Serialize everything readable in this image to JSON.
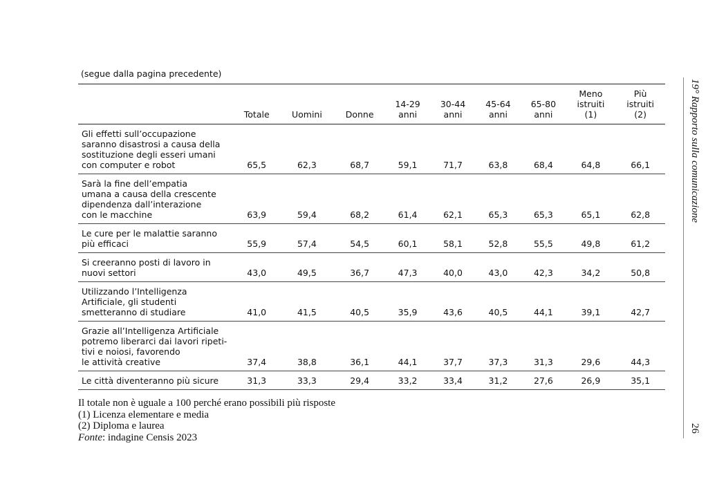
{
  "caption": "(segue dalla pagina precedente)",
  "header": [
    "Totale",
    "Uomini",
    "Donne",
    "14-29\nanni",
    "30-44\nanni",
    "45-64\nanni",
    "65-80\nanni",
    "Meno\nistruiti\n(1)",
    "Più\nistruiti\n(2)"
  ],
  "rows": [
    {
      "label": "Gli effetti sull’occupazione\nsaranno disastrosi a causa della\nsostituzione degli esseri umani\ncon computer e robot",
      "values": [
        "65,5",
        "62,3",
        "68,7",
        "59,1",
        "71,7",
        "63,8",
        "68,4",
        "64,8",
        "66,1"
      ]
    },
    {
      "label": "Sarà la fine dell’empatia\numana a causa della crescente\ndipendenza dall’interazione\ncon le macchine",
      "values": [
        "63,9",
        "59,4",
        "68,2",
        "61,4",
        "62,1",
        "65,3",
        "65,3",
        "65,1",
        "62,8"
      ]
    },
    {
      "label": "Le cure per le malattie saranno\npiù efficaci",
      "values": [
        "55,9",
        "57,4",
        "54,5",
        "60,1",
        "58,1",
        "52,8",
        "55,5",
        "49,8",
        "61,2"
      ]
    },
    {
      "label": "Si creeranno posti di lavoro in\nnuovi settori",
      "values": [
        "43,0",
        "49,5",
        "36,7",
        "47,3",
        "40,0",
        "43,0",
        "42,3",
        "34,2",
        "50,8"
      ]
    },
    {
      "label": "Utilizzando l’Intelligenza\nArtificiale, gli studenti\nsmetteranno di studiare",
      "values": [
        "41,0",
        "41,5",
        "40,5",
        "35,9",
        "43,6",
        "40,5",
        "44,1",
        "39,1",
        "42,7"
      ]
    },
    {
      "label": "Grazie all’Intelligenza Artificiale\npotremo liberarci dai lavori ripeti-\ntivi e noiosi, favorendo\nle attività creative",
      "values": [
        "37,4",
        "38,8",
        "36,1",
        "44,1",
        "37,7",
        "37,3",
        "31,3",
        "29,6",
        "44,3"
      ]
    },
    {
      "label": "Le città diventeranno più sicure",
      "values": [
        "31,3",
        "33,3",
        "29,4",
        "33,2",
        "33,4",
        "31,2",
        "27,6",
        "26,9",
        "35,1"
      ]
    }
  ],
  "notes": {
    "total": "Il totale non è uguale a 100 perché erano possibili più risposte",
    "note1": "(1) Licenza elementare e media",
    "note2": "(2) Diploma e laurea",
    "source_label": "Fonte",
    "source_text": ": indagine Censis 2023"
  },
  "sidebar": {
    "title": "19° Rapporto sulla comunicazione",
    "page_number": "26"
  }
}
